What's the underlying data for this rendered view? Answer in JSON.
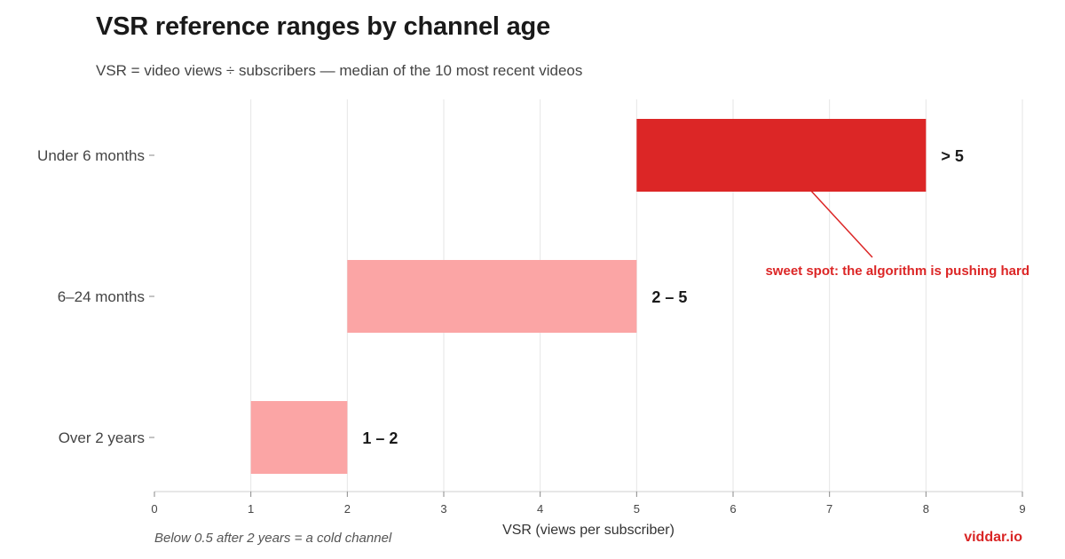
{
  "title": "VSR reference ranges by channel age",
  "subtitle": "VSR = video views ÷ subscribers — median of the 10 most recent videos",
  "footnote": "Below 0.5 after 2 years = a cold channel",
  "brand": "viddar.io",
  "colors": {
    "highlight": "#dc2626",
    "normal": "#fba5a5",
    "annotation": "#dc2626"
  },
  "chart_data": {
    "type": "bar",
    "orientation": "horizontal-range",
    "categories": [
      "Under 6 months",
      "6–24 months",
      "Over 2 years"
    ],
    "ranges": [
      {
        "category": "Under 6 months",
        "start": 5,
        "end": 8,
        "label": "> 5",
        "highlight": true
      },
      {
        "category": "6–24 months",
        "start": 2,
        "end": 5,
        "label": "2 – 5",
        "highlight": false
      },
      {
        "category": "Over 2 years",
        "start": 1,
        "end": 2,
        "label": "1 – 2",
        "highlight": false
      }
    ],
    "xlabel": "VSR (views per subscriber)",
    "xlim": [
      0,
      9
    ],
    "xticks": [
      0,
      1,
      2,
      3,
      4,
      5,
      6,
      7,
      8,
      9
    ],
    "grid": "vertical",
    "annotation": {
      "text": "sweet spot: the algorithm is pushing hard",
      "target_category": "Under 6 months",
      "target_x": 6.8
    }
  }
}
